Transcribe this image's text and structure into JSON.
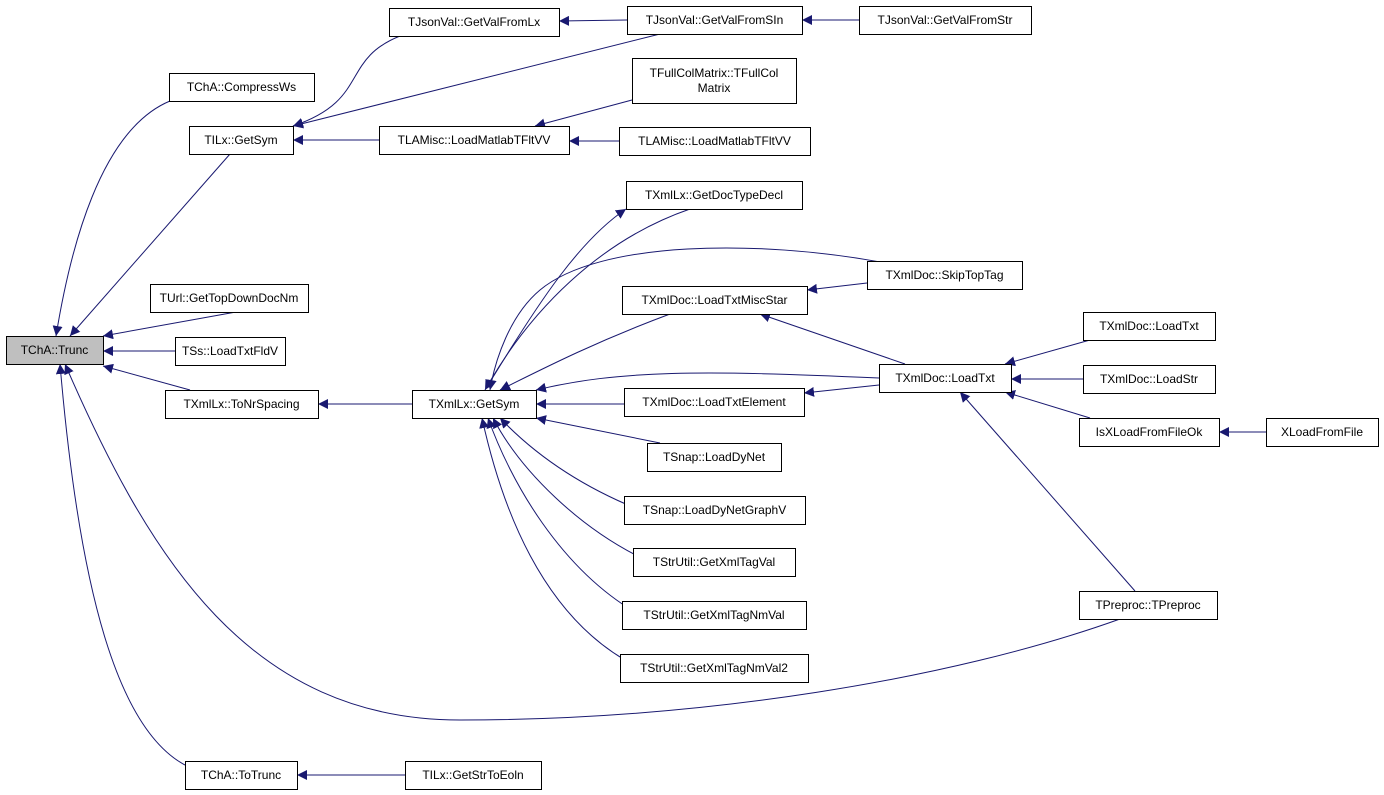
{
  "colors": {
    "edge": "#191970",
    "focus_fill": "#bfbfbf",
    "node_fill": "#ffffff"
  },
  "nodes": {
    "trunc": "TChA::Trunc",
    "compressWs": "TChA::CompressWs",
    "ilxGetSym": "TILx::GetSym",
    "urlGetTop": "TUrl::GetTopDownDocNm",
    "ssLoad": "TSs::LoadTxtFldV",
    "toNrSpacing": "TXmlLx::ToNrSpacing",
    "chaToTrunc": "TChA::ToTrunc",
    "getValFromLx": "TJsonVal::GetValFromLx",
    "getValFromSIn": "TJsonVal::GetValFromSIn",
    "getValFromStr": "TJsonVal::GetValFromStr",
    "fullCol1": "TFullColMatrix::TFullCol",
    "fullCol2": "Matrix",
    "loadMatlab1": "TLAMisc::LoadMatlabTFltVV",
    "loadMatlab2": "TLAMisc::LoadMatlabTFltVV",
    "getDocType": "TXmlLx::GetDocTypeDecl",
    "skipTopTag": "TXmlDoc::SkipTopTag",
    "loadTxtMisc": "TXmlDoc::LoadTxtMiscStar",
    "xmlLxGetSym": "TXmlLx::GetSym",
    "loadTxtElement": "TXmlDoc::LoadTxtElement",
    "xmlLoadTxt": "TXmlDoc::LoadTxt",
    "xmlLoadTxt2": "TXmlDoc::LoadTxt",
    "loadStr": "TXmlDoc::LoadStr",
    "isXLoad": "IsXLoadFromFileOk",
    "xLoadFromFile": "XLoadFromFile",
    "loadDyNet": "TSnap::LoadDyNet",
    "loadDyNetGraphV": "TSnap::LoadDyNetGraphV",
    "getXmlTagVal": "TStrUtil::GetXmlTagVal",
    "getXmlTagNmVal": "TStrUtil::GetXmlTagNmVal",
    "getXmlTagNmVal2": "TStrUtil::GetXmlTagNmVal2",
    "tpreproc": "TPreproc::TPreproc",
    "getStrToEoln": "TILx::GetStrToEoln"
  }
}
